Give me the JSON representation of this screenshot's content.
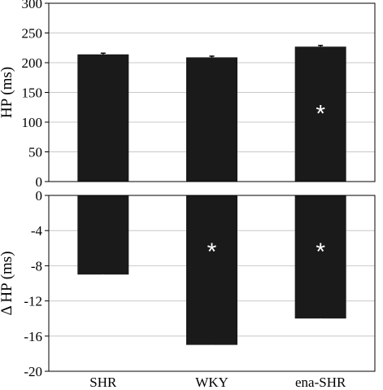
{
  "chart_data": {
    "categories": [
      "SHR",
      "WKY",
      "ena-SHR"
    ],
    "bar_color": "#1a1a1a",
    "panels": [
      {
        "type": "bar",
        "ylabel": "HP (ms)",
        "ylim": [
          0,
          300
        ],
        "yticks": [
          "0",
          "50",
          "100",
          "150",
          "200",
          "250",
          "300"
        ],
        "grid": true,
        "values": [
          214,
          209,
          227
        ],
        "errors": [
          2,
          2,
          2
        ],
        "significance": [
          "",
          "",
          "*"
        ],
        "significance_y": [
          null,
          null,
          120
        ]
      },
      {
        "type": "bar",
        "ylabel": "Δ HP (ms)",
        "ylim": [
          -20,
          0
        ],
        "yticks": [
          "0",
          "-4",
          "-8",
          "-12",
          "-16",
          "-20"
        ],
        "grid": true,
        "values": [
          -9,
          -17,
          -14
        ],
        "errors": [
          1.1,
          2.1,
          1.1
        ],
        "significance": [
          "",
          "*",
          "*"
        ],
        "significance_y": [
          null,
          -6,
          -6
        ]
      }
    ]
  }
}
